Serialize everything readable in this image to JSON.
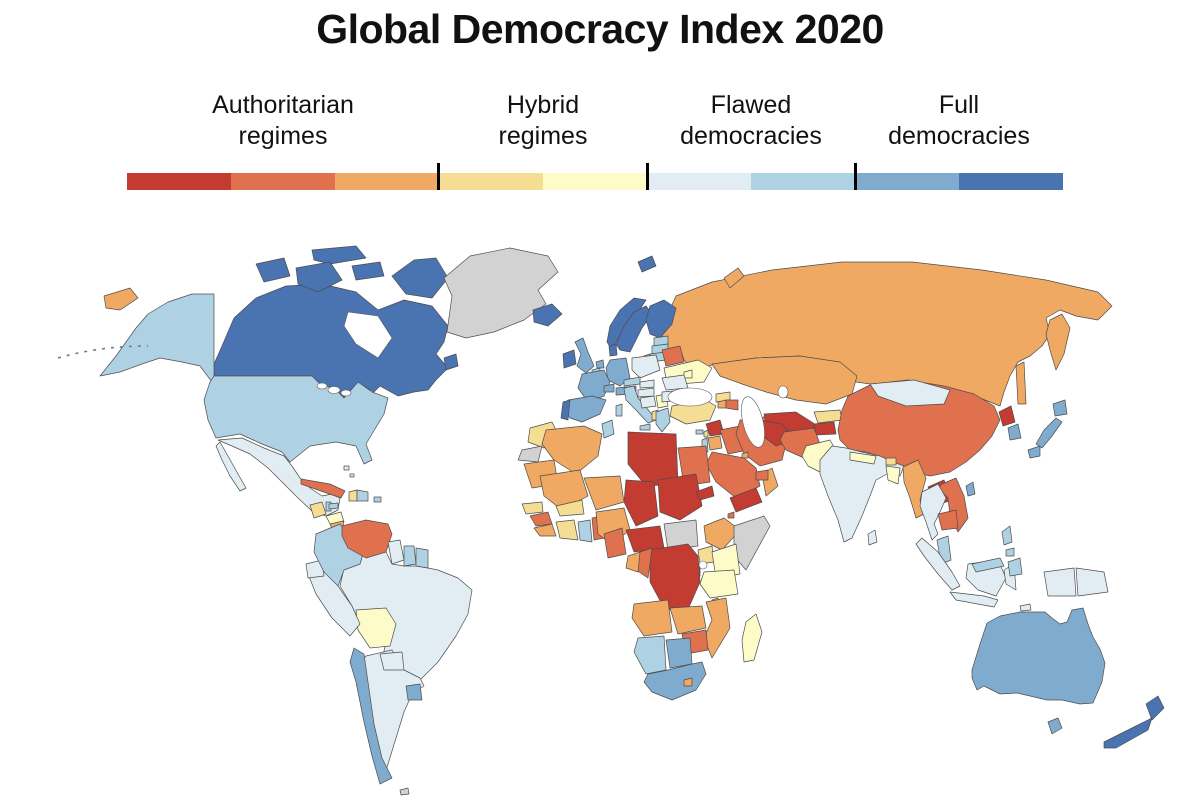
{
  "header": {
    "title": "Global Democracy Index 2020"
  },
  "legend": {
    "bands": [
      {
        "line1": "Authoritarian",
        "line2": "regimes",
        "colors": [
          "#c23c32",
          "#e0714e",
          "#f0a962"
        ]
      },
      {
        "line1": "Hybrid",
        "line2": "regimes",
        "colors": [
          "#f6dd94",
          "#fdfbc8"
        ]
      },
      {
        "line1": "Flawed",
        "line2": "democracies",
        "colors": [
          "#e1edf3",
          "#aed1e3"
        ]
      },
      {
        "line1": "Full",
        "line2": "democracies",
        "colors": [
          "#7fabce",
          "#4a73b2"
        ]
      }
    ],
    "scale": [
      "#c23c32",
      "#e0714e",
      "#f0a962",
      "#f6dd94",
      "#fdfbc8",
      "#e1edf3",
      "#aed1e3",
      "#7fabce",
      "#4a73b2"
    ],
    "tick_positions_pct": [
      33.333,
      55.556,
      77.778
    ],
    "tick_color": "#000000"
  },
  "map": {
    "ocean_color": "#ffffff",
    "border_color": "#4d4d4d",
    "no_data_color": "#d2d2d2",
    "palette": {
      "auth1": "#c23c32",
      "auth2": "#e0714e",
      "auth3": "#f0a962",
      "hyb1": "#f6dd94",
      "hyb2": "#fdfbc8",
      "flaw1": "#e1edf3",
      "flaw2": "#aed1e3",
      "full1": "#7fabce",
      "full2": "#4a73b2",
      "nodata": "#d2d2d2"
    },
    "countries": {
      "canada": "full2",
      "united_states": "flaw2",
      "greenland": "nodata",
      "mexico": "flaw1",
      "guatemala": "hyb1",
      "belize": "flaw2",
      "honduras": "hyb2",
      "nicaragua": "auth3",
      "costa_rica": "full1",
      "panama": "flaw2",
      "cuba": "auth2",
      "jamaica": "flaw2",
      "haiti": "hyb1",
      "dominican_republic": "flaw2",
      "puerto_rico": "flaw2",
      "bahamas": "flaw1",
      "venezuela": "auth2",
      "colombia": "flaw2",
      "guyana": "flaw1",
      "suriname": "flaw2",
      "french_guiana": "flaw2",
      "ecuador": "flaw1",
      "peru": "flaw1",
      "brazil": "flaw1",
      "bolivia": "hyb2",
      "paraguay": "flaw1",
      "chile": "full1",
      "argentina": "flaw1",
      "uruguay": "full1",
      "falkland_islands": "nodata",
      "iceland": "full2",
      "ireland": "full2",
      "united_kingdom": "full1",
      "norway": "full2",
      "sweden": "full2",
      "finland": "full2",
      "denmark": "full2",
      "estonia": "flaw2",
      "latvia": "flaw2",
      "lithuania": "flaw2",
      "belarus": "auth2",
      "poland": "flaw1",
      "germany": "full1",
      "netherlands": "full1",
      "belgium": "flaw2",
      "france": "full1",
      "spain": "full1",
      "portugal": "full2",
      "italy": "flaw2",
      "switzerland": "full1",
      "austria": "full1",
      "czechia": "flaw2",
      "slovakia": "flaw1",
      "hungary": "flaw1",
      "croatia_bosnia": "flaw1",
      "serbia": "hyb2",
      "albania": "hyb1",
      "greece": "flaw2",
      "ukraine": "hyb2",
      "moldova": "hyb2",
      "romania": "flaw1",
      "bulgaria": "flaw1",
      "russia": "auth3",
      "turkey": "hyb1",
      "cyprus": "flaw2",
      "georgia": "hyb1",
      "armenia": "auth3",
      "azerbaijan": "auth2",
      "syria": "auth1",
      "lebanon": "hyb1",
      "israel": "flaw2",
      "jordan": "auth3",
      "iraq": "auth2",
      "iran": "auth2",
      "kuwait": "auth3",
      "saudi_arabia": "auth2",
      "yemen": "auth1",
      "oman": "auth3",
      "uae": "auth2",
      "kazakhstan": "auth3",
      "uzbekistan": "auth1",
      "turkmenistan": "auth1",
      "kyrgyzstan": "hyb1",
      "tajikistan": "auth1",
      "afghanistan": "auth2",
      "pakistan": "hyb2",
      "india": "flaw1",
      "nepal": "hyb2",
      "bhutan": "hyb1",
      "bangladesh": "hyb2",
      "sri_lanka": "flaw1",
      "china": "auth2",
      "mongolia": "flaw1",
      "north_korea": "auth1",
      "south_korea": "full1",
      "japan": "full1",
      "taiwan": "full1",
      "myanmar": "auth3",
      "thailand": "flaw1",
      "laos": "auth1",
      "vietnam": "auth2",
      "cambodia": "auth2",
      "malaysia": "flaw2",
      "indonesia": "flaw1",
      "east_timor": "flaw1",
      "philippines": "flaw2",
      "papua_new_guinea": "flaw1",
      "australia": "full1",
      "new_zealand": "full2",
      "morocco": "hyb1",
      "western_sahara": "nodata",
      "algeria": "auth3",
      "tunisia": "flaw2",
      "libya": "auth1",
      "egypt": "auth2",
      "mauritania": "auth3",
      "mali": "auth3",
      "niger": "auth3",
      "chad": "auth1",
      "sudan": "auth1",
      "eritrea": "auth1",
      "djibouti": "auth2",
      "ethiopia": "auth3",
      "somalia": "nodata",
      "senegal": "hyb1",
      "guinea": "auth2",
      "sierra_leone_liberia": "auth3",
      "ivory_coast": "hyb1",
      "ghana": "flaw2",
      "togo_benin": "auth2",
      "burkina_faso": "hyb1",
      "nigeria": "auth3",
      "cameroon": "auth2",
      "central_african_republic": "auth1",
      "south_sudan": "nodata",
      "uganda": "hyb1",
      "kenya": "hyb2",
      "rwanda_burundi": "auth1",
      "drc": "auth1",
      "congo": "auth2",
      "gabon": "auth3",
      "tanzania": "hyb2",
      "malawi": "hyb1",
      "angola": "auth3",
      "zambia": "auth3",
      "mozambique": "auth3",
      "zimbabwe": "auth2",
      "namibia": "flaw2",
      "botswana": "full1",
      "south_africa": "full1",
      "lesotho": "auth3",
      "madagascar": "hyb2"
    }
  }
}
